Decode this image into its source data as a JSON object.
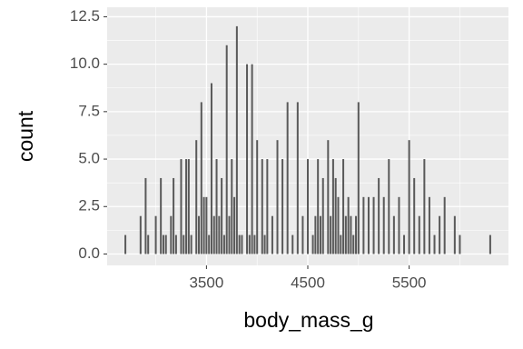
{
  "chart_data": {
    "type": "histogram",
    "x_label": "body_mass_g",
    "y_label": "count",
    "x": [
      2700,
      2850,
      2900,
      2925,
      3000,
      3050,
      3075,
      3100,
      3150,
      3175,
      3200,
      3250,
      3275,
      3300,
      3325,
      3350,
      3400,
      3425,
      3450,
      3475,
      3500,
      3525,
      3550,
      3575,
      3600,
      3625,
      3650,
      3675,
      3700,
      3725,
      3750,
      3775,
      3800,
      3825,
      3850,
      3900,
      3925,
      3950,
      3975,
      4000,
      4050,
      4075,
      4100,
      4150,
      4200,
      4250,
      4300,
      4350,
      4400,
      4450,
      4500,
      4550,
      4575,
      4600,
      4625,
      4650,
      4700,
      4725,
      4750,
      4775,
      4800,
      4825,
      4850,
      4875,
      4900,
      4925,
      4950,
      4975,
      5000,
      5050,
      5100,
      5150,
      5200,
      5250,
      5300,
      5350,
      5400,
      5450,
      5500,
      5550,
      5600,
      5650,
      5700,
      5750,
      5800,
      5850,
      5950,
      6000,
      6300
    ],
    "values": [
      1,
      2,
      4,
      1,
      2,
      4,
      1,
      1,
      2,
      4,
      1,
      5,
      1,
      5,
      5,
      1,
      6,
      2,
      8,
      3,
      3,
      1,
      9,
      2,
      5,
      2,
      4,
      1,
      11,
      2,
      5,
      3,
      12,
      1,
      1,
      10,
      1,
      10,
      1,
      6,
      5,
      1,
      5,
      2,
      6,
      5,
      8,
      1,
      8,
      2,
      5,
      1,
      2,
      5,
      2,
      4,
      6,
      2,
      5,
      4,
      3,
      1,
      5,
      2,
      3,
      2,
      1,
      2,
      8,
      3,
      3,
      3,
      4,
      3,
      5,
      2,
      3,
      1,
      6,
      4,
      2,
      5,
      3,
      1,
      2,
      3,
      2,
      1,
      1
    ],
    "color": "#595959",
    "xlim": [
      2520,
      6480
    ],
    "xticks": [
      3500,
      4500,
      5500
    ],
    "ylim": [
      -0.6,
      13.0
    ],
    "yticks": [
      {
        "value": 0,
        "label": "0.0"
      },
      2.5,
      {
        "value": 5,
        "label": "5.0"
      },
      7.5,
      {
        "value": 10,
        "label": "10.0"
      },
      12.5
    ],
    "grid": true
  }
}
